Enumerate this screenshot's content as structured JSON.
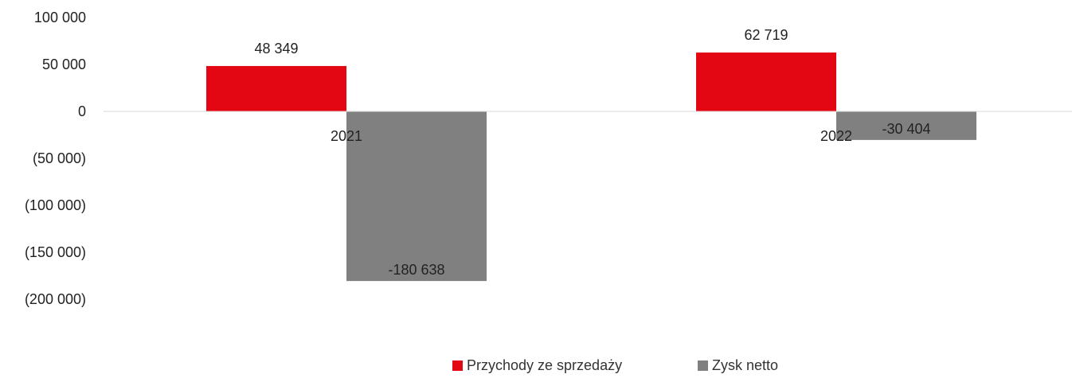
{
  "chart_data": {
    "type": "bar",
    "categories": [
      "2021",
      "2022"
    ],
    "series": [
      {
        "name": "Przychody ze sprzedaży",
        "color": "#e30613",
        "values": [
          48349,
          62719
        ],
        "value_labels": [
          "48 349",
          "62 719"
        ]
      },
      {
        "name": "Zysk netto",
        "color": "#808080",
        "values": [
          -180638,
          -30404
        ],
        "value_labels": [
          "-180 638",
          "-30 404"
        ]
      }
    ],
    "ylim": [
      -200000,
      100000
    ],
    "yticks": [
      {
        "value": 100000,
        "label": "100 000"
      },
      {
        "value": 50000,
        "label": "50 000"
      },
      {
        "value": 0,
        "label": "0"
      },
      {
        "value": -50000,
        "label": "(50 000)"
      },
      {
        "value": -100000,
        "label": "(100 000)"
      },
      {
        "value": -150000,
        "label": "(150 000)"
      },
      {
        "value": -200000,
        "label": "(200 000)"
      }
    ],
    "grid": false,
    "legend_position": "bottom-center",
    "title": "",
    "xlabel": "",
    "ylabel": ""
  }
}
